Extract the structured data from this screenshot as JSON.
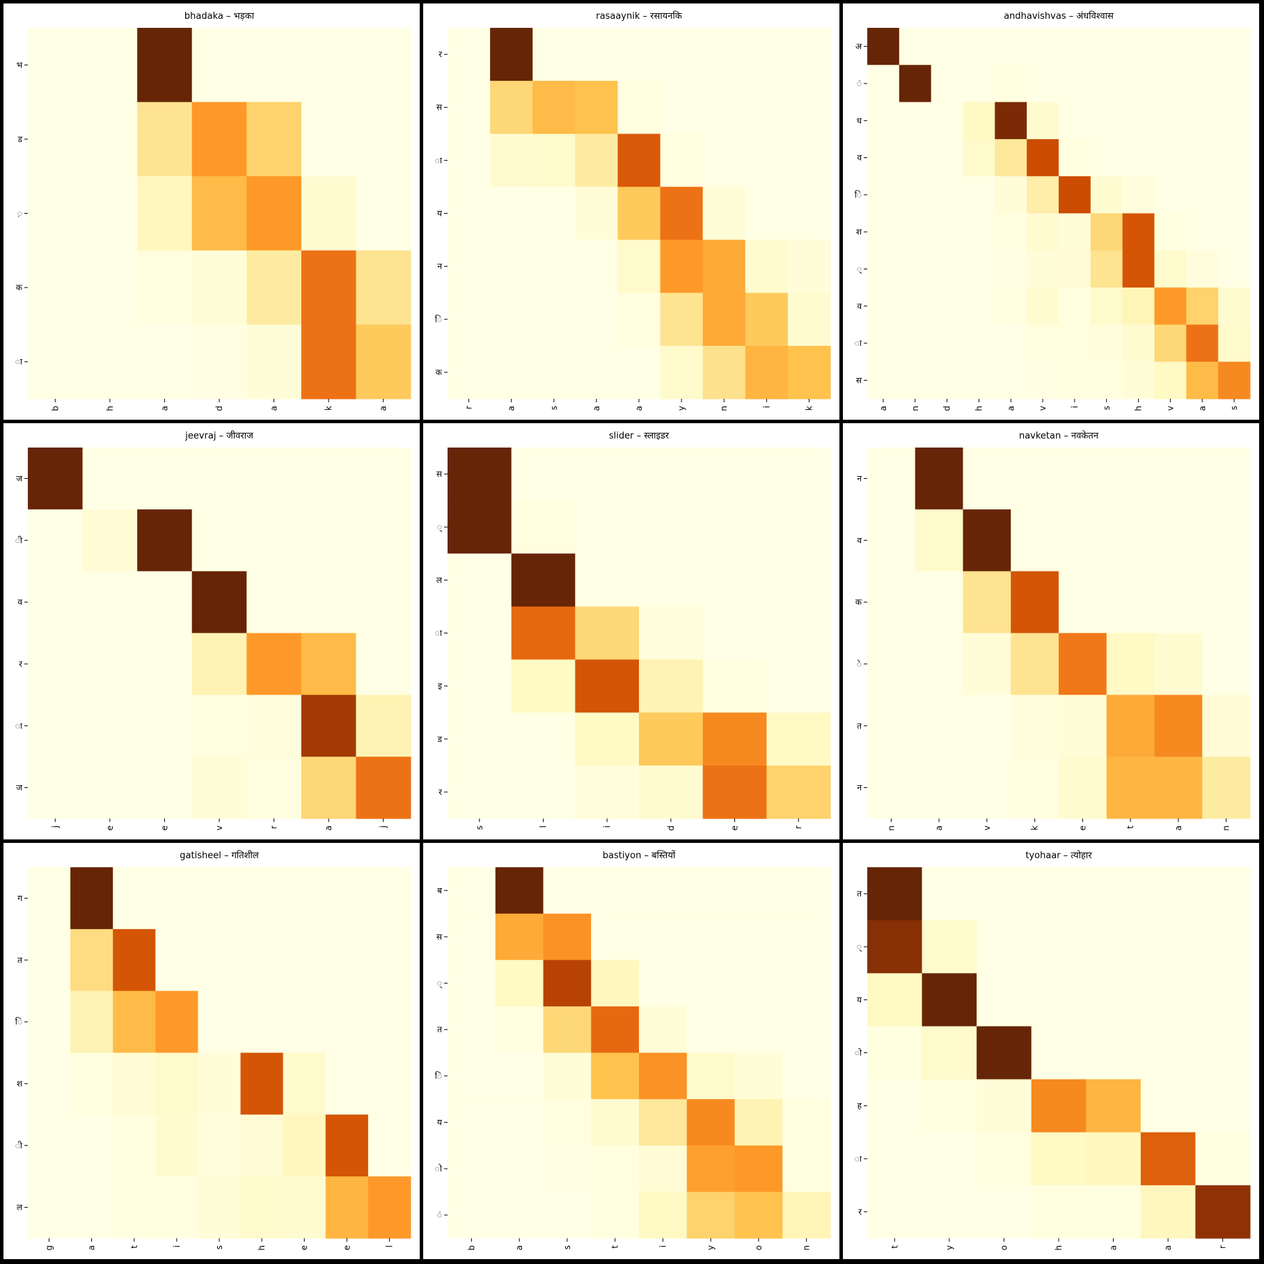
{
  "palette": [
    "#ffffe5",
    "#fff7bc",
    "#fee391",
    "#fec44f",
    "#fe9929",
    "#ec7014",
    "#cc4c02",
    "#993404",
    "#662506"
  ],
  "chart_data": [
    {
      "type": "heatmap",
      "title": "bhadaka – भड़का",
      "x": [
        "b",
        "h",
        "a",
        "d",
        "a",
        "k",
        "a"
      ],
      "y": [
        "भ",
        "ड",
        "़",
        "क",
        "ा"
      ],
      "values": [
        [
          0,
          0,
          1.0,
          0,
          0,
          0,
          0
        ],
        [
          0,
          0,
          0.25,
          0.5,
          0.32,
          0,
          0
        ],
        [
          0,
          0,
          0.12,
          0.4,
          0.5,
          0.06,
          0
        ],
        [
          0,
          0,
          0.02,
          0.04,
          0.2,
          0.62,
          0.25
        ],
        [
          0,
          0,
          0,
          0.01,
          0.04,
          0.62,
          0.35
        ]
      ]
    },
    {
      "type": "heatmap",
      "title": "rasaaynik – रसायनकि",
      "x": [
        "r",
        "a",
        "s",
        "a",
        "a",
        "y",
        "n",
        "i",
        "k"
      ],
      "y": [
        "र",
        "स",
        "ा",
        "य",
        "न",
        "ि",
        "क"
      ],
      "values": [
        [
          0,
          1.0,
          0,
          0,
          0,
          0,
          0,
          0,
          0
        ],
        [
          0,
          0.3,
          0.4,
          0.38,
          0.02,
          0,
          0,
          0,
          0
        ],
        [
          0,
          0.06,
          0.08,
          0.2,
          0.7,
          0.02,
          0,
          0,
          0
        ],
        [
          0,
          0,
          0,
          0.04,
          0.35,
          0.62,
          0.04,
          0,
          0
        ],
        [
          0,
          0,
          0,
          0,
          0.08,
          0.5,
          0.45,
          0.07,
          0.04
        ],
        [
          0,
          0,
          0,
          0,
          0.02,
          0.25,
          0.45,
          0.35,
          0.06
        ],
        [
          0,
          0,
          0,
          0,
          0,
          0.08,
          0.26,
          0.42,
          0.38
        ]
      ]
    },
    {
      "type": "heatmap",
      "title": "andhavishvas – अंधविश्वास",
      "x": [
        "a",
        "n",
        "d",
        "h",
        "a",
        "v",
        "i",
        "s",
        "h",
        "v",
        "a",
        "s"
      ],
      "y": [
        "अ",
        "ं",
        "ध",
        "व",
        "ि",
        "श",
        "्",
        "व",
        "ा",
        "स"
      ],
      "values": [
        [
          1.0,
          0,
          0,
          0,
          0,
          0,
          0,
          0,
          0,
          0,
          0,
          0
        ],
        [
          0,
          1.0,
          0,
          0,
          0.02,
          0,
          0,
          0,
          0,
          0,
          0,
          0
        ],
        [
          0,
          0,
          0,
          0.1,
          0.95,
          0.06,
          0,
          0,
          0,
          0,
          0,
          0
        ],
        [
          0,
          0,
          0,
          0.08,
          0.22,
          0.75,
          0.02,
          0,
          0,
          0,
          0,
          0
        ],
        [
          0,
          0,
          0,
          0,
          0.04,
          0.18,
          0.75,
          0.06,
          0.03,
          0,
          0,
          0
        ],
        [
          0,
          0,
          0,
          0,
          0.02,
          0.06,
          0.04,
          0.3,
          0.72,
          0.02,
          0,
          0
        ],
        [
          0,
          0,
          0,
          0,
          0.01,
          0.04,
          0.05,
          0.25,
          0.72,
          0.08,
          0.03,
          0
        ],
        [
          0,
          0,
          0,
          0,
          0.02,
          0.06,
          0.02,
          0.08,
          0.14,
          0.5,
          0.32,
          0.06
        ],
        [
          0,
          0,
          0,
          0,
          0,
          0.02,
          0.02,
          0.03,
          0.06,
          0.3,
          0.62,
          0.08
        ],
        [
          0,
          0,
          0,
          0,
          0,
          0.01,
          0.02,
          0.02,
          0.04,
          0.1,
          0.4,
          0.55
        ]
      ]
    },
    {
      "type": "heatmap",
      "title": "jeevraj – जीवराज",
      "x": [
        "j",
        "e",
        "e",
        "v",
        "r",
        "a",
        "j"
      ],
      "y": [
        "ज",
        "ी",
        "व",
        "र",
        "ा",
        "ज"
      ],
      "values": [
        [
          1.0,
          0,
          0,
          0,
          0,
          0,
          0
        ],
        [
          0,
          0.05,
          1.0,
          0,
          0,
          0,
          0
        ],
        [
          0,
          0,
          0,
          1.0,
          0,
          0,
          0
        ],
        [
          0,
          0,
          0,
          0.15,
          0.5,
          0.4,
          0
        ],
        [
          0,
          0,
          0,
          0.02,
          0.03,
          0.85,
          0.15
        ],
        [
          0,
          0,
          0,
          0.04,
          0.02,
          0.3,
          0.62
        ]
      ]
    },
    {
      "type": "heatmap",
      "title": "slider – स्लाइडर",
      "x": [
        "s",
        "l",
        "i",
        "d",
        "e",
        "r"
      ],
      "y": [
        "स",
        "्",
        "ल",
        "ा",
        "इ",
        "ड",
        "र"
      ],
      "values": [
        [
          1.0,
          0,
          0,
          0,
          0,
          0
        ],
        [
          1.0,
          0.02,
          0,
          0,
          0,
          0
        ],
        [
          0,
          1.0,
          0,
          0,
          0,
          0
        ],
        [
          0,
          0.65,
          0.3,
          0.03,
          0,
          0
        ],
        [
          0,
          0.1,
          0.72,
          0.15,
          0.02,
          0
        ],
        [
          0,
          0,
          0.1,
          0.35,
          0.55,
          0.1
        ],
        [
          0,
          0,
          0.03,
          0.06,
          0.62,
          0.32
        ]
      ]
    },
    {
      "type": "heatmap",
      "title": "navketan – नवकेतन",
      "x": [
        "n",
        "a",
        "v",
        "k",
        "e",
        "t",
        "a",
        "n"
      ],
      "y": [
        "न",
        "व",
        "क",
        "े",
        "त",
        "न"
      ],
      "values": [
        [
          0,
          1.0,
          0,
          0,
          0,
          0,
          0,
          0
        ],
        [
          0,
          0.08,
          1.0,
          0,
          0,
          0,
          0,
          0
        ],
        [
          0,
          0,
          0.25,
          0.72,
          0,
          0,
          0,
          0
        ],
        [
          0,
          0,
          0.04,
          0.25,
          0.6,
          0.1,
          0.06,
          0
        ],
        [
          0,
          0,
          0,
          0.03,
          0.04,
          0.45,
          0.55,
          0.05
        ],
        [
          0,
          0,
          0,
          0.02,
          0.06,
          0.42,
          0.42,
          0.2
        ]
      ]
    },
    {
      "type": "heatmap",
      "title": "gatisheel – गतिशील",
      "x": [
        "g",
        "a",
        "t",
        "i",
        "s",
        "h",
        "e",
        "e",
        "l"
      ],
      "y": [
        "ग",
        "त",
        "ि",
        "श",
        "ी",
        "ल"
      ],
      "values": [
        [
          0,
          1.0,
          0,
          0,
          0,
          0,
          0,
          0,
          0
        ],
        [
          0,
          0.28,
          0.72,
          0,
          0,
          0,
          0,
          0,
          0
        ],
        [
          0,
          0.15,
          0.4,
          0.5,
          0,
          0,
          0,
          0,
          0
        ],
        [
          0,
          0.02,
          0.05,
          0.08,
          0.04,
          0.72,
          0.08,
          0,
          0
        ],
        [
          0,
          0,
          0.02,
          0.06,
          0.03,
          0.05,
          0.12,
          0.72,
          0
        ],
        [
          0,
          0,
          0.02,
          0.02,
          0.04,
          0.08,
          0.06,
          0.42,
          0.5
        ]
      ]
    },
    {
      "type": "heatmap",
      "title": "bastiyon – बस्तियों",
      "x": [
        "b",
        "a",
        "s",
        "t",
        "i",
        "y",
        "o",
        "n"
      ],
      "y": [
        "ब",
        "स",
        "्",
        "त",
        "ि",
        "य",
        "ो",
        "ं"
      ],
      "values": [
        [
          0,
          1.0,
          0,
          0,
          0,
          0,
          0,
          0
        ],
        [
          0,
          0.45,
          0.52,
          0,
          0,
          0,
          0,
          0
        ],
        [
          0,
          0.1,
          0.8,
          0.12,
          0,
          0,
          0,
          0
        ],
        [
          0,
          0.02,
          0.3,
          0.65,
          0.04,
          0,
          0,
          0
        ],
        [
          0,
          0,
          0.04,
          0.38,
          0.52,
          0.08,
          0.04,
          0
        ],
        [
          0,
          0,
          0.02,
          0.06,
          0.22,
          0.55,
          0.15,
          0.02
        ],
        [
          0,
          0,
          0.01,
          0.02,
          0.05,
          0.48,
          0.5,
          0.02
        ],
        [
          0,
          0,
          0,
          0.02,
          0.1,
          0.32,
          0.38,
          0.14
        ]
      ]
    },
    {
      "type": "heatmap",
      "title": "tyohaar – त्योहार",
      "x": [
        "t",
        "y",
        "o",
        "h",
        "a",
        "a",
        "r"
      ],
      "y": [
        "त",
        "्",
        "य",
        "ो",
        "ह",
        "ा",
        "र"
      ],
      "values": [
        [
          1.0,
          0,
          0,
          0,
          0,
          0,
          0
        ],
        [
          0.92,
          0.08,
          0,
          0,
          0,
          0,
          0
        ],
        [
          0.1,
          1.0,
          0,
          0,
          0,
          0,
          0
        ],
        [
          0.02,
          0.08,
          1.0,
          0,
          0,
          0,
          0
        ],
        [
          0,
          0.02,
          0.04,
          0.55,
          0.42,
          0,
          0
        ],
        [
          0,
          0,
          0.02,
          0.1,
          0.12,
          0.68,
          0.02
        ],
        [
          0,
          0,
          0,
          0.02,
          0.02,
          0.12,
          0.9
        ]
      ]
    }
  ]
}
